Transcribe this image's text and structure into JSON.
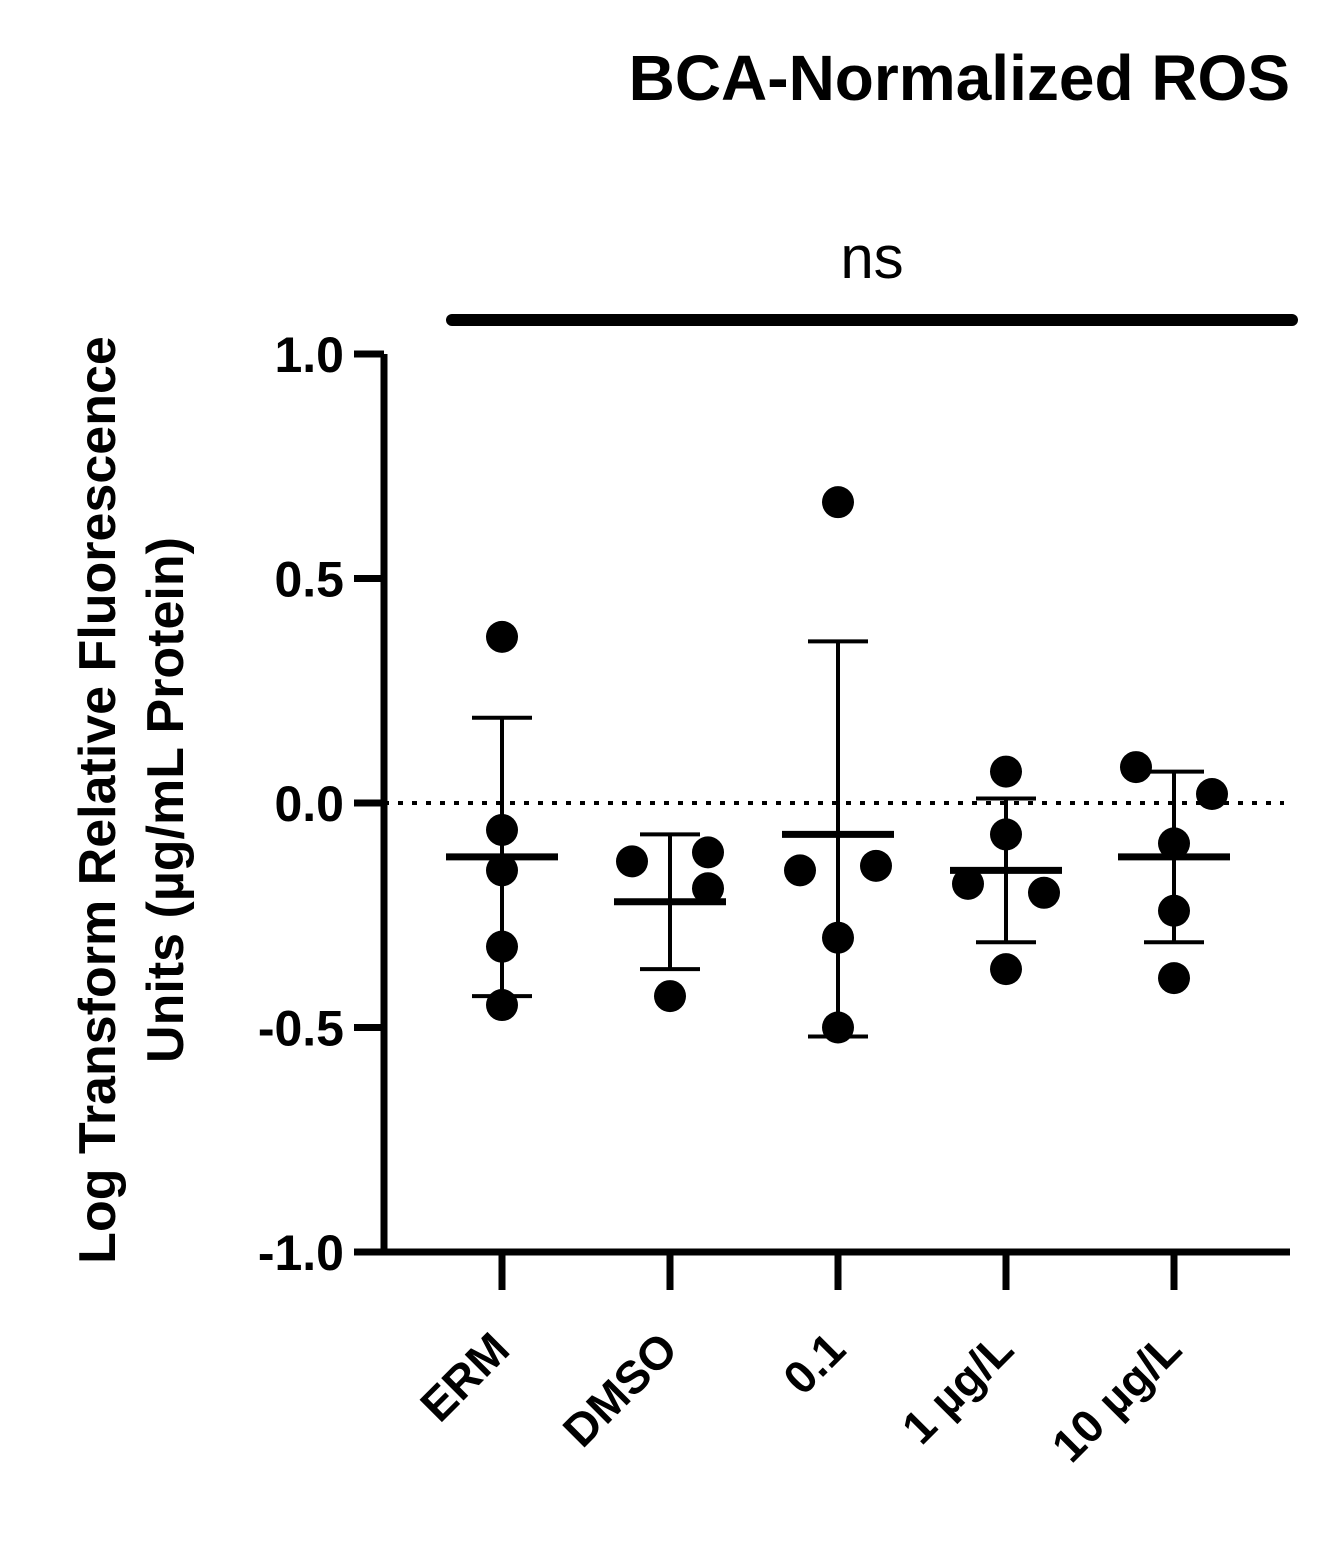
{
  "chart_data": {
    "type": "scatter",
    "title": "BCA-Normalized ROS",
    "ylabel_lines": [
      "Log Transform Relative Fluorescence",
      "Units (µg/mL Protein)"
    ],
    "xlabel": "",
    "ylim": [
      -1.0,
      1.0
    ],
    "yticks": [
      1.0,
      0.5,
      0.0,
      -0.5,
      -1.0
    ],
    "ytick_labels": [
      "1.0",
      "0.5",
      "0.0",
      "-0.5",
      "-1.0"
    ],
    "reference_line": 0.0,
    "significance": {
      "label": "ns",
      "from": "ERM",
      "to": "10 µg/L"
    },
    "categories": [
      "ERM",
      "DMSO",
      "0.1",
      "1 µg/L",
      "10 µg/L"
    ],
    "groups": [
      {
        "name": "ERM",
        "points": [
          0.37,
          -0.06,
          -0.15,
          -0.32,
          -0.45
        ],
        "mean": -0.12,
        "sd_upper": 0.19,
        "sd_lower": -0.43
      },
      {
        "name": "DMSO",
        "points": [
          -0.13,
          -0.11,
          -0.19,
          -0.43
        ],
        "mean": -0.22,
        "sd_upper": -0.07,
        "sd_lower": -0.37
      },
      {
        "name": "0.1",
        "points": [
          0.67,
          -0.15,
          -0.14,
          -0.3,
          -0.5
        ],
        "mean": -0.07,
        "sd_upper": 0.36,
        "sd_lower": -0.52
      },
      {
        "name": "1 µg/L",
        "points": [
          0.07,
          -0.07,
          -0.18,
          -0.2,
          -0.37
        ],
        "mean": -0.15,
        "sd_upper": 0.01,
        "sd_lower": -0.31
      },
      {
        "name": "10 µg/L",
        "points": [
          0.08,
          0.02,
          -0.09,
          -0.24,
          -0.39
        ],
        "mean": -0.12,
        "sd_upper": 0.07,
        "sd_lower": -0.31
      }
    ]
  }
}
